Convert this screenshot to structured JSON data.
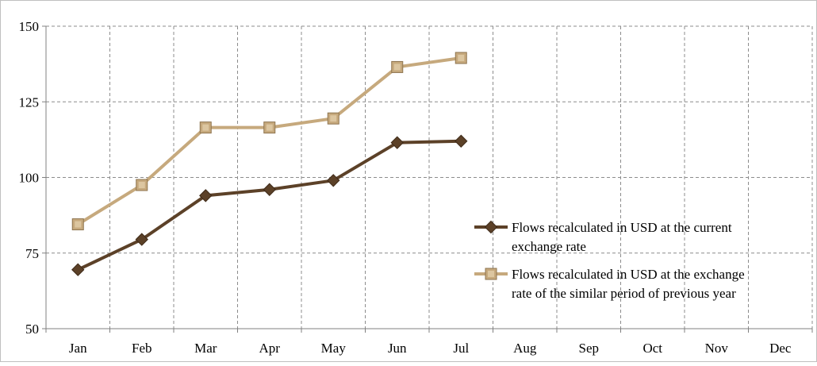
{
  "chart_data": {
    "type": "line",
    "title": "",
    "xlabel": "",
    "ylabel": "",
    "categories": [
      "Jan",
      "Feb",
      "Mar",
      "Apr",
      "May",
      "Jun",
      "Jul",
      "Aug",
      "Sep",
      "Oct",
      "Nov",
      "Dec"
    ],
    "ylim": [
      50,
      150
    ],
    "yticks": [
      50,
      75,
      100,
      125,
      150
    ],
    "grid": true,
    "legend_position": "right",
    "series": [
      {
        "name": "Flows recalculated in USD at the current exchange rate",
        "legend_lines": [
          "Flows recalculated in USD at the current",
          "exchange rate"
        ],
        "marker": "diamond",
        "color": "#5c4128",
        "values": [
          69.5,
          79.5,
          94,
          96,
          99,
          111.5,
          112,
          null,
          null,
          null,
          null,
          null
        ]
      },
      {
        "name": "Flows recalculated in USD at the exchange rate of the similar period of previous year",
        "legend_lines": [
          "Flows recalculated in USD at the exchange",
          "rate of the similar period of previous year"
        ],
        "marker": "square",
        "color": "#c6a97d",
        "values": [
          84.5,
          97.5,
          116.5,
          116.5,
          119.5,
          136.5,
          139.5,
          null,
          null,
          null,
          null,
          null
        ]
      }
    ]
  }
}
